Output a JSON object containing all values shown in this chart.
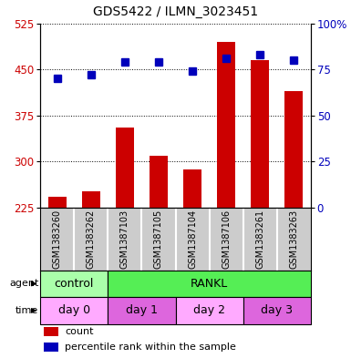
{
  "title": "GDS5422 / ILMN_3023451",
  "samples": [
    "GSM1383260",
    "GSM1383262",
    "GSM1387103",
    "GSM1387105",
    "GSM1387104",
    "GSM1387106",
    "GSM1383261",
    "GSM1383263"
  ],
  "counts": [
    242,
    252,
    355,
    310,
    287,
    495,
    465,
    415
  ],
  "percentiles": [
    70,
    72,
    79,
    79,
    74,
    81,
    83,
    80
  ],
  "ylim_left": [
    225,
    525
  ],
  "ylim_right": [
    0,
    100
  ],
  "yticks_left": [
    225,
    300,
    375,
    450,
    525
  ],
  "yticks_right": [
    0,
    25,
    50,
    75,
    100
  ],
  "ytick_labels_right": [
    "0",
    "25",
    "50",
    "75",
    "100%"
  ],
  "bar_color": "#cc0000",
  "dot_color": "#0000bb",
  "bar_width": 0.55,
  "agent_labels": [
    {
      "label": "control",
      "cols": [
        0,
        1
      ],
      "color": "#aaffaa"
    },
    {
      "label": "RANKL",
      "cols": [
        2,
        7
      ],
      "color": "#55ee55"
    }
  ],
  "time_labels": [
    {
      "label": "day 0",
      "cols": [
        0,
        1
      ],
      "color": "#ffaaff"
    },
    {
      "label": "day 1",
      "cols": [
        2,
        3
      ],
      "color": "#dd66dd"
    },
    {
      "label": "day 2",
      "cols": [
        4,
        5
      ],
      "color": "#ffaaff"
    },
    {
      "label": "day 3",
      "cols": [
        6,
        7
      ],
      "color": "#dd66dd"
    }
  ],
  "legend_count_label": "count",
  "legend_percentile_label": "percentile rank within the sample",
  "tick_label_color_left": "#cc0000",
  "tick_label_color_right": "#0000bb",
  "xlabel_area_color": "#cccccc",
  "plot_bg": "#ffffff"
}
